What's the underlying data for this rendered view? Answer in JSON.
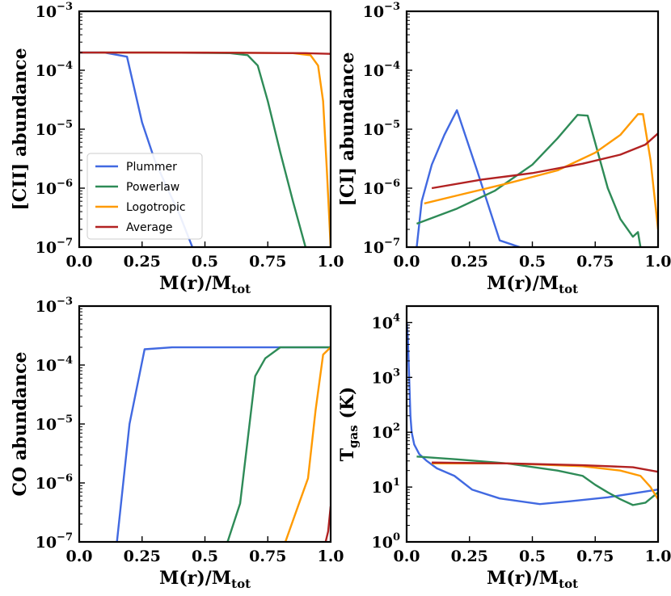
{
  "chart_data": [
    {
      "id": "cii",
      "type": "line",
      "yscale": "log",
      "xlabel": "M(r)/M_tot",
      "ylabel": "[CII] abundance",
      "xlim": [
        0,
        1
      ],
      "ylim": [
        1e-07,
        0.001
      ],
      "xticks": [
        "0.0",
        "0.25",
        "0.5",
        "0.75",
        "1.0"
      ],
      "yticks": [
        {
          "base": "10",
          "exp": "−3",
          "v": 0.001
        },
        {
          "base": "10",
          "exp": "−4",
          "v": 0.0001
        },
        {
          "base": "10",
          "exp": "−5",
          "v": 1e-05
        },
        {
          "base": "10",
          "exp": "−6",
          "v": 1e-06
        },
        {
          "base": "10",
          "exp": "−7",
          "v": 1e-07
        }
      ],
      "legend": {
        "location": "center-left",
        "entries": [
          "Plummer",
          "Powerlaw",
          "Logotropic",
          "Average"
        ]
      },
      "series": [
        {
          "name": "Plummer",
          "x": [
            0.0,
            0.1,
            0.19,
            0.25,
            0.3,
            0.35,
            0.4,
            0.45
          ],
          "y": [
            0.0002,
            0.0002,
            0.00017,
            1.3e-05,
            3e-06,
            1e-06,
            3.5e-07,
            1e-07
          ]
        },
        {
          "name": "Powerlaw",
          "x": [
            0.0,
            0.3,
            0.6,
            0.67,
            0.71,
            0.75,
            0.8,
            0.85,
            0.9
          ],
          "y": [
            0.0002,
            0.0002,
            0.000195,
            0.00018,
            0.00012,
            3e-05,
            4e-06,
            6e-07,
            1e-07
          ]
        },
        {
          "name": "Logotropic",
          "x": [
            0.08,
            0.5,
            0.85,
            0.92,
            0.95,
            0.97,
            0.985,
            1.0
          ],
          "y": [
            0.0002,
            0.0002,
            0.000195,
            0.00018,
            0.00012,
            3e-05,
            2e-06,
            1e-07
          ]
        },
        {
          "name": "Average",
          "x": [
            0.0,
            0.3,
            0.6,
            0.9,
            1.0
          ],
          "y": [
            0.0002,
            0.0002,
            0.000198,
            0.000195,
            0.00019
          ]
        }
      ]
    },
    {
      "id": "ci",
      "type": "line",
      "yscale": "log",
      "xlabel": "M(r)/M_tot",
      "ylabel": "[CI] abundance",
      "xlim": [
        0,
        1
      ],
      "ylim": [
        1e-07,
        0.001
      ],
      "xticks": [
        "0.0",
        "0.25",
        "0.5",
        "0.75",
        "1.0"
      ],
      "yticks": [
        {
          "base": "10",
          "exp": "−3",
          "v": 0.001
        },
        {
          "base": "10",
          "exp": "−4",
          "v": 0.0001
        },
        {
          "base": "10",
          "exp": "−5",
          "v": 1e-05
        },
        {
          "base": "10",
          "exp": "−6",
          "v": 1e-06
        },
        {
          "base": "10",
          "exp": "−7",
          "v": 1e-07
        }
      ],
      "series": [
        {
          "name": "Plummer",
          "x": [
            0.04,
            0.06,
            0.1,
            0.15,
            0.2,
            0.28,
            0.37,
            0.45
          ],
          "y": [
            1e-07,
            6e-07,
            2.5e-06,
            8e-06,
            2.1e-05,
            2e-06,
            1.3e-07,
            1e-07
          ]
        },
        {
          "name": "Powerlaw",
          "x": [
            0.04,
            0.2,
            0.35,
            0.5,
            0.6,
            0.68,
            0.72,
            0.8,
            0.85,
            0.9,
            0.92,
            0.93
          ],
          "y": [
            2.5e-07,
            4.5e-07,
            9e-07,
            2.5e-06,
            7e-06,
            1.75e-05,
            1.7e-05,
            1e-06,
            3e-07,
            1.5e-07,
            1.8e-07,
            1e-07
          ]
        },
        {
          "name": "Logotropic",
          "x": [
            0.07,
            0.2,
            0.4,
            0.6,
            0.75,
            0.85,
            0.92,
            0.94,
            0.97,
            1.0
          ],
          "y": [
            5.5e-07,
            7.5e-07,
            1.2e-06,
            2e-06,
            4e-06,
            8e-06,
            1.8e-05,
            1.8e-05,
            3e-06,
            2e-07
          ]
        },
        {
          "name": "Average",
          "x": [
            0.1,
            0.3,
            0.5,
            0.7,
            0.85,
            0.95,
            1.0
          ],
          "y": [
            1e-06,
            1.4e-06,
            1.8e-06,
            2.6e-06,
            3.7e-06,
            5.5e-06,
            8.5e-06
          ]
        }
      ]
    },
    {
      "id": "co",
      "type": "line",
      "yscale": "log",
      "xlabel": "M(r)/M_tot",
      "ylabel": "CO abundance",
      "xlim": [
        0,
        1
      ],
      "ylim": [
        1e-07,
        0.001
      ],
      "xticks": [
        "0.0",
        "0.25",
        "0.5",
        "0.75",
        "1.0"
      ],
      "yticks": [
        {
          "base": "10",
          "exp": "−3",
          "v": 0.001
        },
        {
          "base": "10",
          "exp": "−4",
          "v": 0.0001
        },
        {
          "base": "10",
          "exp": "−5",
          "v": 1e-05
        },
        {
          "base": "10",
          "exp": "−6",
          "v": 1e-06
        },
        {
          "base": "10",
          "exp": "−7",
          "v": 1e-07
        }
      ],
      "series": [
        {
          "name": "Plummer",
          "x": [
            0.15,
            0.2,
            0.26,
            0.37,
            0.6,
            1.0
          ],
          "y": [
            1e-07,
            1e-05,
            0.000185,
            0.0002,
            0.0002,
            0.0002
          ]
        },
        {
          "name": "Powerlaw",
          "x": [
            0.59,
            0.64,
            0.7,
            0.74,
            0.8,
            1.0
          ],
          "y": [
            1e-07,
            4.5e-07,
            6.5e-05,
            0.00013,
            0.0002,
            0.0002
          ]
        },
        {
          "name": "Logotropic",
          "x": [
            0.82,
            0.87,
            0.91,
            0.94,
            0.97,
            1.0
          ],
          "y": [
            1e-07,
            4e-07,
            1.2e-06,
            1.7e-05,
            0.00015,
            0.0002
          ]
        },
        {
          "name": "Average",
          "x": [
            0.98,
            0.99,
            1.0
          ],
          "y": [
            1e-07,
            1.5e-07,
            4e-07
          ]
        }
      ]
    },
    {
      "id": "tgas",
      "type": "line",
      "yscale": "log",
      "xlabel": "M(r)/M_tot",
      "ylabel": "T_gas (K)",
      "xlim": [
        0,
        1
      ],
      "ylim": [
        1,
        20000
      ],
      "xticks": [
        "0.0",
        "0.25",
        "0.5",
        "0.75",
        "1.0"
      ],
      "yticks": [
        {
          "base": "10",
          "exp": "4",
          "v": 10000
        },
        {
          "base": "10",
          "exp": "3",
          "v": 1000
        },
        {
          "base": "10",
          "exp": "2",
          "v": 100
        },
        {
          "base": "10",
          "exp": "1",
          "v": 10
        },
        {
          "base": "10",
          "exp": "0",
          "v": 1
        }
      ],
      "series": [
        {
          "name": "Plummer",
          "x": [
            0.001,
            0.005,
            0.01,
            0.015,
            0.02,
            0.03,
            0.05,
            0.08,
            0.12,
            0.19,
            0.26,
            0.37,
            0.53,
            0.65,
            0.8,
            1.0
          ],
          "y": [
            10000,
            5000,
            1000,
            200,
            100,
            60,
            40,
            30,
            22,
            16,
            9,
            6.2,
            4.9,
            5.5,
            6.5,
            9
          ]
        },
        {
          "name": "Powerlaw",
          "x": [
            0.04,
            0.2,
            0.4,
            0.6,
            0.7,
            0.75,
            0.8,
            0.85,
            0.9,
            0.95,
            1.0
          ],
          "y": [
            36,
            32,
            27,
            20,
            16,
            11,
            8,
            6,
            4.7,
            5.2,
            8
          ]
        },
        {
          "name": "Logotropic",
          "x": [
            0.1,
            0.4,
            0.7,
            0.85,
            0.93,
            0.97,
            1.0
          ],
          "y": [
            27,
            27,
            24,
            20,
            16,
            10,
            6
          ]
        },
        {
          "name": "Average",
          "x": [
            0.1,
            0.4,
            0.7,
            0.9,
            1.0
          ],
          "y": [
            28,
            27,
            25,
            23,
            19
          ]
        }
      ]
    }
  ],
  "colors": {
    "Plummer": "#4169e1",
    "Powerlaw": "#2e8b57",
    "Logotropic": "#ff9a00",
    "Average": "#b22222"
  }
}
